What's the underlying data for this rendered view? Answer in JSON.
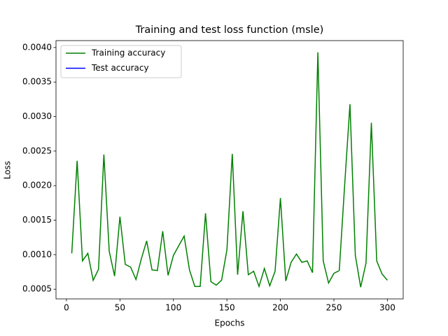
{
  "chart_data": {
    "type": "line",
    "title": "Training and test loss function (msle)",
    "x_label": "Epochs",
    "y_label": "Loss",
    "x": [
      5,
      10,
      15,
      20,
      25,
      30,
      35,
      40,
      45,
      50,
      55,
      60,
      65,
      70,
      75,
      80,
      85,
      90,
      95,
      100,
      105,
      110,
      115,
      120,
      125,
      130,
      135,
      140,
      145,
      150,
      155,
      160,
      165,
      170,
      175,
      180,
      185,
      190,
      195,
      200,
      205,
      210,
      215,
      220,
      225,
      230,
      235,
      240,
      245,
      250,
      255,
      260,
      265,
      270,
      275,
      280,
      285,
      290,
      295,
      300
    ],
    "series": [
      {
        "name": "Training accuracy",
        "color": "#008000",
        "values": [
          0.00102,
          0.00236,
          0.00091,
          0.00102,
          0.00063,
          0.00079,
          0.00245,
          0.00105,
          0.00069,
          0.00155,
          0.00086,
          0.00082,
          0.00064,
          0.00094,
          0.0012,
          0.00078,
          0.00077,
          0.00134,
          0.0007,
          0.00099,
          0.00113,
          0.00127,
          0.00078,
          0.00054,
          0.00054,
          0.0016,
          0.00061,
          0.00056,
          0.00063,
          0.00107,
          0.00246,
          0.00071,
          0.00163,
          0.00071,
          0.00076,
          0.00054,
          0.0008,
          0.00055,
          0.00076,
          0.00182,
          0.00062,
          0.00089,
          0.00101,
          0.00089,
          0.00091,
          0.00074,
          0.00393,
          0.00091,
          0.00059,
          0.00073,
          0.00077,
          0.002,
          0.00318,
          0.00099,
          0.00053,
          0.00088,
          0.00291,
          0.00091,
          0.00072,
          0.00063
        ]
      },
      {
        "name": "Test accuracy",
        "color": "#0000ff",
        "values": [
          null,
          null,
          null,
          null,
          null,
          null,
          null,
          null,
          null,
          null,
          null,
          null,
          null,
          null,
          null,
          null,
          null,
          null,
          null,
          null,
          null,
          null,
          null,
          null,
          null,
          null,
          null,
          null,
          null,
          null,
          null,
          null,
          null,
          null,
          null,
          null,
          null,
          null,
          null,
          null,
          null,
          null,
          null,
          null,
          null,
          null,
          null,
          null,
          null,
          null,
          null,
          null,
          null,
          null,
          null,
          null,
          null,
          null,
          null,
          null
        ]
      }
    ],
    "xlim": [
      -9.75,
      314.75
    ],
    "xticks": [
      0,
      50,
      100,
      150,
      200,
      250,
      300
    ],
    "ylim": [
      0.00036,
      0.0041
    ],
    "yticks": [
      0.0005,
      {
        "value": 0.001,
        "label": "0.0010"
      },
      0.0015,
      {
        "value": 0.002,
        "label": "0.0020"
      },
      0.0025,
      {
        "value": 0.003,
        "label": "0.0030"
      },
      0.0035,
      {
        "value": 0.004,
        "label": "0.0040"
      }
    ],
    "legend": "upper left",
    "grid": false
  }
}
